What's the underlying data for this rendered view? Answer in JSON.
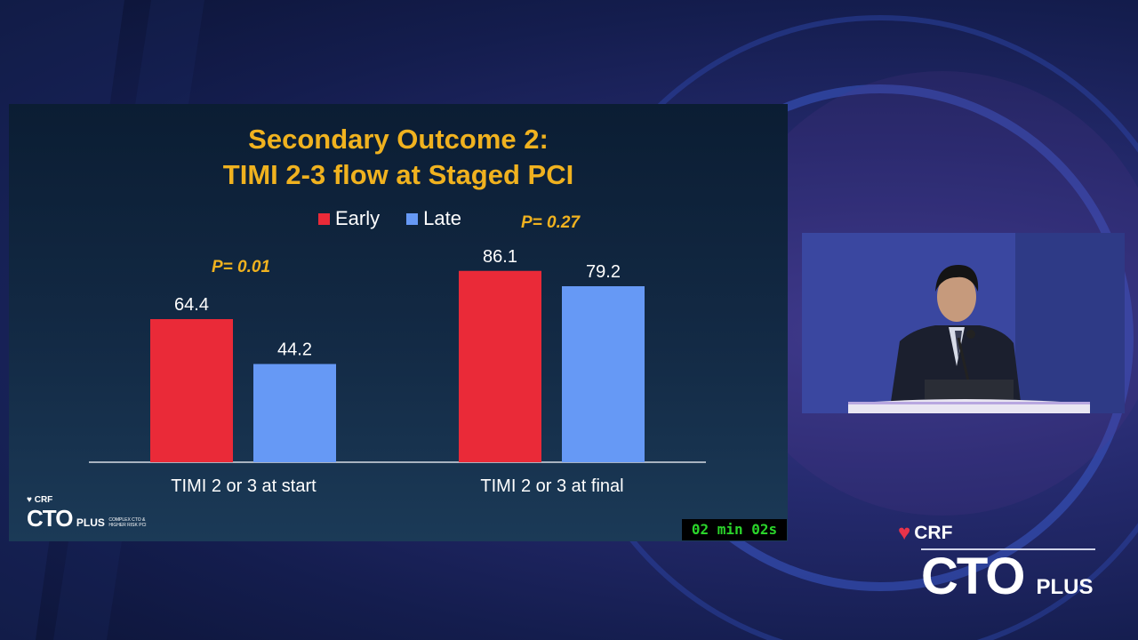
{
  "slide": {
    "title_line1": "Secondary Outcome 2:",
    "title_line2": "TIMI 2-3 flow at Staged PCI",
    "p_value_start": "P= 0.01",
    "p_value_final": "P= 0.27",
    "logo_crf": "CRF",
    "logo_cto": "CTO",
    "logo_plus": "PLUS",
    "logo_tagline": "COMPLEX CTO & HIGHER RISK PCI"
  },
  "timer": {
    "text": "02 min 02s"
  },
  "corner_logo": {
    "crf": "CRF",
    "cto": "CTO",
    "plus": "PLUS"
  },
  "colors": {
    "early": "#ea2a38",
    "late": "#6699f5",
    "accent": "#f0b21f",
    "timer_text": "#2bd52b"
  },
  "chart_data": {
    "type": "bar",
    "categories": [
      "TIMI 2 or 3 at start",
      "TIMI 2 or 3 at final"
    ],
    "series": [
      {
        "name": "Early",
        "values": [
          64.4,
          86.1
        ],
        "labels": [
          "64.4",
          "86.1"
        ]
      },
      {
        "name": "Late",
        "values": [
          44.2,
          79.2
        ],
        "labels": [
          "44.2",
          "79.2"
        ]
      }
    ],
    "title": "Secondary Outcome 2: TIMI 2-3 flow at Staged PCI",
    "xlabel": "",
    "ylabel": "",
    "ylim": [
      0,
      100
    ],
    "grid": false,
    "legend": "top-center"
  }
}
